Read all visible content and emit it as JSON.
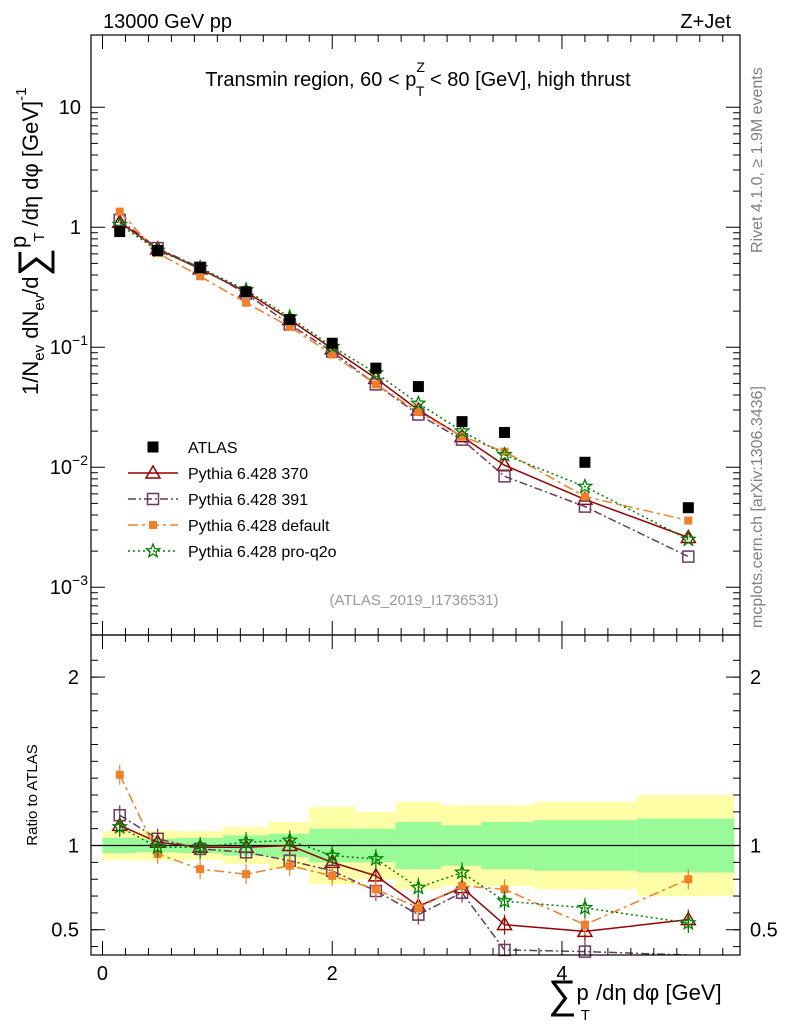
{
  "header": {
    "left": "13000 GeV pp",
    "right": "Z+Jet",
    "subtitle": "Transmin region, 60 < p",
    "subtitle_sup": "Z",
    "subtitle_sub": "T",
    "subtitle_tail": " < 80 [GeV], high thrust",
    "watermark": "(ATLAS_2019_I1736531)"
  },
  "side_labels": {
    "rivet": "Rivet 4.1.0, ≥ 1.9M events",
    "mcplots": "mcplots.cern.ch [arXiv:1306.3436]"
  },
  "axis_text": {
    "top_ylabel": "1/N",
    "top_ylabel_ev": "ev",
    "top_ylabel_mid": " dN",
    "top_ylabel_ev2": "ev",
    "top_ylabel_d": "/d",
    "top_ylabel_sum": "∑",
    "top_ylabel_p": "p",
    "top_ylabel_T": "T",
    "top_ylabel_tail": " /dη dφ  [GeV]",
    "top_ylabel_exp": "-1",
    "bottom_ylabel": "Ratio to ATLAS",
    "xlabel_sum": "∑",
    "xlabel_p": "p",
    "xlabel_T": "T",
    "xlabel_tail": " /dη dφ [GeV]",
    "top_ytick_labels": [
      "10",
      "1",
      "10",
      "10",
      "10"
    ],
    "top_ytick_exps": [
      "",
      "",
      "−1",
      "−2",
      "−3"
    ],
    "bottom_ytick_labels": [
      "2",
      "1",
      "0.5"
    ],
    "xtick_labels": [
      "0",
      "2",
      "4"
    ]
  },
  "chart_data": {
    "type": "line",
    "x": [
      0.15,
      0.48,
      0.85,
      1.25,
      1.63,
      2.0,
      2.38,
      2.75,
      3.13,
      3.5,
      4.2,
      5.1
    ],
    "bin_edges": [
      0.0,
      0.3,
      0.65,
      1.05,
      1.45,
      1.8,
      2.2,
      2.55,
      2.95,
      3.3,
      3.75,
      4.65,
      5.5
    ],
    "xlim": [
      -0.1,
      5.55
    ],
    "main": {
      "ylim": [
        0.0004,
        40
      ],
      "yscale": "log",
      "yticks": [
        10,
        1,
        0.1,
        0.01,
        0.001
      ]
    },
    "ratio": {
      "ylim": [
        0.35,
        2.25
      ],
      "yticks": [
        2,
        1,
        0.5
      ]
    },
    "data": {
      "name": "ATLAS",
      "values": [
        0.92,
        0.64,
        0.46,
        0.29,
        0.17,
        0.108,
        0.067,
        0.047,
        0.024,
        0.0195,
        0.011,
        0.0046
      ]
    },
    "bands": {
      "green_halfwidth": [
        0.045,
        0.04,
        0.045,
        0.06,
        0.07,
        0.1,
        0.1,
        0.14,
        0.12,
        0.14,
        0.15,
        0.16
      ],
      "yellow_halfwidth": [
        0.085,
        0.09,
        0.085,
        0.11,
        0.14,
        0.23,
        0.2,
        0.26,
        0.24,
        0.24,
        0.26,
        0.3
      ]
    },
    "series": [
      {
        "name": "Pythia 6.428 370",
        "color": "#990000",
        "marker": "triangle",
        "dash": "",
        "values": [
          1.1,
          0.66,
          0.45,
          0.29,
          0.17,
          0.097,
          0.055,
          0.03,
          0.018,
          0.0104,
          0.0054,
          0.0026
        ],
        "ratio": [
          1.12,
          1.02,
          0.99,
          0.99,
          1.0,
          0.9,
          0.82,
          0.64,
          0.75,
          0.53,
          0.49,
          0.56
        ]
      },
      {
        "name": "Pythia 6.428 391",
        "color": "#6b3a5e",
        "marker": "square-open",
        "dash": "8,3,2,3",
        "values": [
          1.15,
          0.67,
          0.46,
          0.28,
          0.155,
          0.092,
          0.049,
          0.0275,
          0.017,
          0.0084,
          0.0047,
          0.0018
        ],
        "ratio": [
          1.18,
          1.04,
          0.98,
          0.96,
          0.91,
          0.85,
          0.73,
          0.59,
          0.72,
          0.38,
          0.37,
          0.3
        ]
      },
      {
        "name": "Pythia 6.428 default",
        "color": "#f07f2a",
        "marker": "square-filled",
        "dash": "10,4,3,4",
        "values": [
          1.35,
          0.61,
          0.39,
          0.235,
          0.148,
          0.087,
          0.049,
          0.029,
          0.018,
          0.0135,
          0.0057,
          0.0036
        ],
        "ratio": [
          1.42,
          0.95,
          0.86,
          0.83,
          0.88,
          0.82,
          0.74,
          0.63,
          0.76,
          0.74,
          0.53,
          0.8
        ]
      },
      {
        "name": "Pythia 6.428 pro-q2o",
        "color": "#008000",
        "marker": "star",
        "dash": "2,3",
        "values": [
          1.05,
          0.64,
          0.46,
          0.3,
          0.178,
          0.101,
          0.061,
          0.034,
          0.02,
          0.0127,
          0.0069,
          0.0025
        ],
        "ratio": [
          1.11,
          0.99,
          0.99,
          1.02,
          1.03,
          0.94,
          0.92,
          0.75,
          0.84,
          0.67,
          0.63,
          0.54
        ]
      }
    ]
  }
}
